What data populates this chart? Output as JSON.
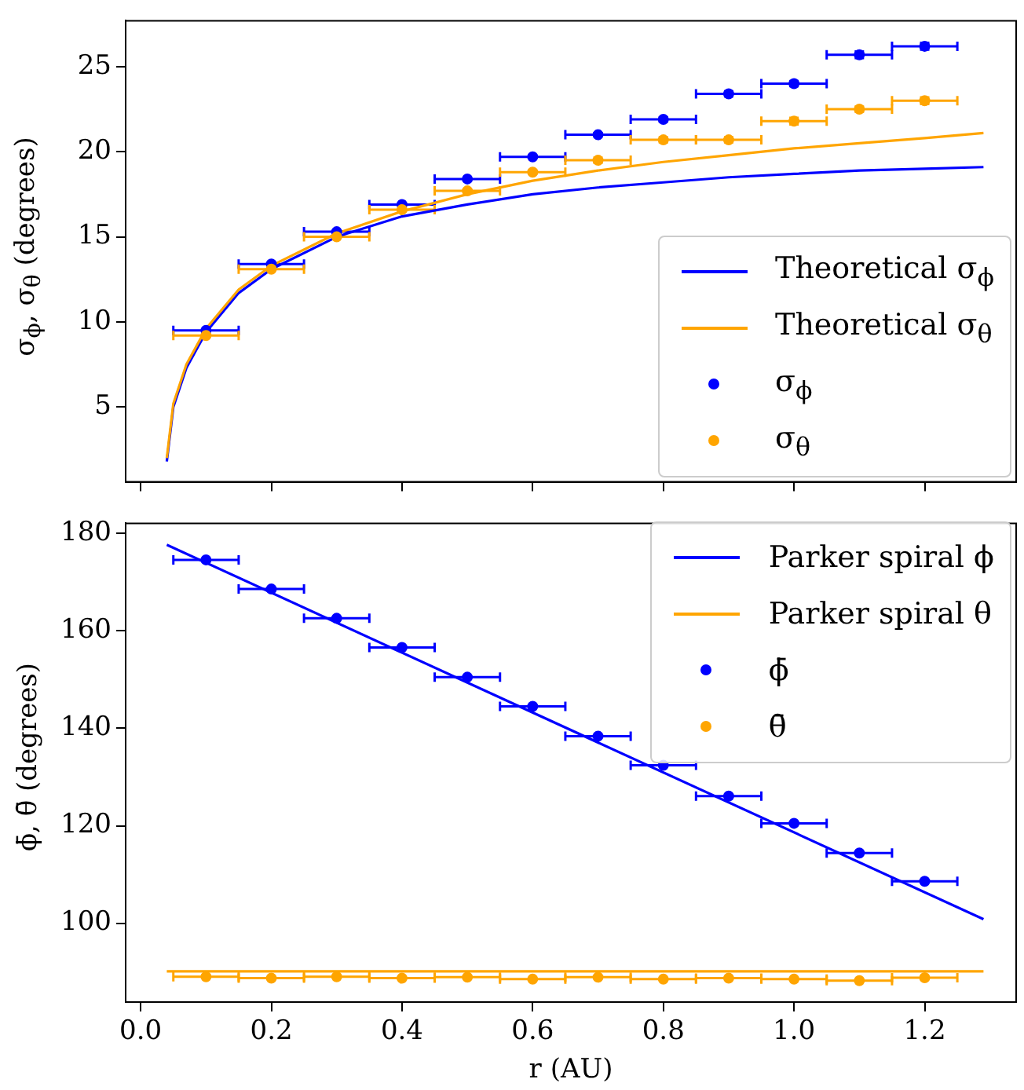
{
  "chart_data": [
    {
      "type": "line",
      "ylabel": "σ$_{ϕ}$, σ$_{θ}$ (degrees)",
      "xlim": [
        -0.023,
        1.34
      ],
      "xticks": [
        0,
        0.2,
        0.4,
        0.6,
        0.8,
        1.0,
        1.2
      ],
      "ylim": [
        0.6,
        27.7
      ],
      "yticks": [
        5,
        10,
        15,
        20,
        25
      ],
      "tick_labels": "y",
      "grid": false,
      "legend": "bottom right",
      "series": [
        {
          "name": "Theoretical σ$_{ϕ}$",
          "type": "line",
          "color": "#0000ff",
          "x": [
            0.04,
            0.05,
            0.07,
            0.1,
            0.15,
            0.2,
            0.3,
            0.4,
            0.5,
            0.6,
            0.7,
            0.8,
            0.9,
            1.0,
            1.1,
            1.2,
            1.29
          ],
          "values": [
            1.8,
            5.0,
            7.3,
            9.4,
            11.7,
            13.1,
            15.0,
            16.2,
            16.9,
            17.5,
            17.9,
            18.2,
            18.5,
            18.7,
            18.9,
            19.0,
            19.1
          ]
        },
        {
          "name": "Theoretical σ$_{θ}$",
          "type": "line",
          "color": "#ffa500",
          "x": [
            0.04,
            0.05,
            0.07,
            0.1,
            0.15,
            0.2,
            0.3,
            0.4,
            0.5,
            0.6,
            0.7,
            0.8,
            0.9,
            1.0,
            1.1,
            1.2,
            1.29
          ],
          "values": [
            2.0,
            5.2,
            7.5,
            9.6,
            11.9,
            13.3,
            15.2,
            16.5,
            17.5,
            18.3,
            18.9,
            19.4,
            19.8,
            20.2,
            20.5,
            20.8,
            21.1
          ]
        },
        {
          "name": "σ$_{ϕ}$",
          "type": "scatter",
          "color": "#0000ff",
          "x": [
            0.1,
            0.2,
            0.3,
            0.4,
            0.5,
            0.6,
            0.7,
            0.8,
            0.9,
            1.0,
            1.1,
            1.2
          ],
          "values": [
            9.5,
            13.4,
            15.3,
            16.9,
            18.4,
            19.7,
            21.0,
            21.9,
            23.4,
            24.0,
            25.7,
            26.2
          ],
          "errors": [
            0.05,
            0.05,
            0.05,
            0.08,
            0.05,
            0.08,
            0.1,
            0.12,
            0.15,
            0.15,
            0.2,
            0.2
          ],
          "xerrors": [
            0.05,
            0.05,
            0.05,
            0.05,
            0.05,
            0.05,
            0.05,
            0.05,
            0.05,
            0.05,
            0.05,
            0.05
          ]
        },
        {
          "name": "σ$_{θ}$",
          "type": "scatter",
          "color": "#ffa500",
          "x": [
            0.1,
            0.2,
            0.3,
            0.4,
            0.5,
            0.6,
            0.7,
            0.8,
            0.9,
            1.0,
            1.1,
            1.2
          ],
          "values": [
            9.2,
            13.1,
            15.0,
            16.6,
            17.7,
            18.8,
            19.5,
            20.7,
            20.7,
            21.8,
            22.5,
            23.0
          ],
          "errors": [
            0.05,
            0.05,
            0.05,
            0.1,
            0.1,
            0.1,
            0.15,
            0.15,
            0.15,
            0.2,
            0.15,
            0.2
          ],
          "xerrors": [
            0.05,
            0.05,
            0.05,
            0.05,
            0.05,
            0.05,
            0.05,
            0.05,
            0.05,
            0.05,
            0.05,
            0.05
          ]
        }
      ]
    },
    {
      "type": "line",
      "xlabel": "r (AU)",
      "ylabel": "ϕ̄, θ̄ (degrees)",
      "xlim": [
        -0.023,
        1.34
      ],
      "xticks": [
        {
          "value": 0,
          "label": "0.0"
        },
        {
          "value": 0.2,
          "label": "0.2"
        },
        {
          "value": 0.4,
          "label": "0.4"
        },
        {
          "value": 0.6,
          "label": "0.6"
        },
        {
          "value": 0.8,
          "label": "0.8"
        },
        {
          "value": 1.0,
          "label": "1.0"
        },
        {
          "value": 1.2,
          "label": "1.2"
        }
      ],
      "ylim": [
        83.8,
        182.1
      ],
      "yticks": [
        100,
        120,
        140,
        160,
        180
      ],
      "grid": false,
      "legend": "top right",
      "series": [
        {
          "name": "Parker spiral ϕ",
          "type": "line",
          "color": "#0000ff",
          "x": [
            0.04,
            1.29
          ],
          "values": [
            177.7,
            100.8
          ]
        },
        {
          "name": "Parker spiral θ",
          "type": "line",
          "color": "#ffa500",
          "x": [
            0.04,
            1.29
          ],
          "values": [
            90.1,
            90.1
          ]
        },
        {
          "name": "ϕ̄",
          "type": "scatter",
          "color": "#0000ff",
          "x": [
            0.1,
            0.2,
            0.3,
            0.4,
            0.5,
            0.6,
            0.7,
            0.8,
            0.9,
            1.0,
            1.1,
            1.2
          ],
          "values": [
            174.6,
            168.6,
            162.6,
            156.6,
            150.5,
            144.5,
            138.4,
            132.4,
            126.1,
            120.5,
            114.4,
            108.6
          ],
          "xerrors": [
            0.05,
            0.05,
            0.05,
            0.05,
            0.05,
            0.05,
            0.05,
            0.05,
            0.05,
            0.05,
            0.05,
            0.05
          ]
        },
        {
          "name": "θ̄",
          "type": "scatter",
          "color": "#ffa500",
          "x": [
            0.1,
            0.2,
            0.3,
            0.4,
            0.5,
            0.6,
            0.7,
            0.8,
            0.9,
            1.0,
            1.1,
            1.2
          ],
          "values": [
            89.0,
            88.7,
            89.0,
            88.7,
            88.9,
            88.5,
            88.9,
            88.5,
            88.7,
            88.5,
            88.2,
            88.8
          ],
          "xerrors": [
            0.05,
            0.05,
            0.05,
            0.05,
            0.05,
            0.05,
            0.05,
            0.05,
            0.05,
            0.05,
            0.05,
            0.05
          ]
        }
      ]
    }
  ]
}
